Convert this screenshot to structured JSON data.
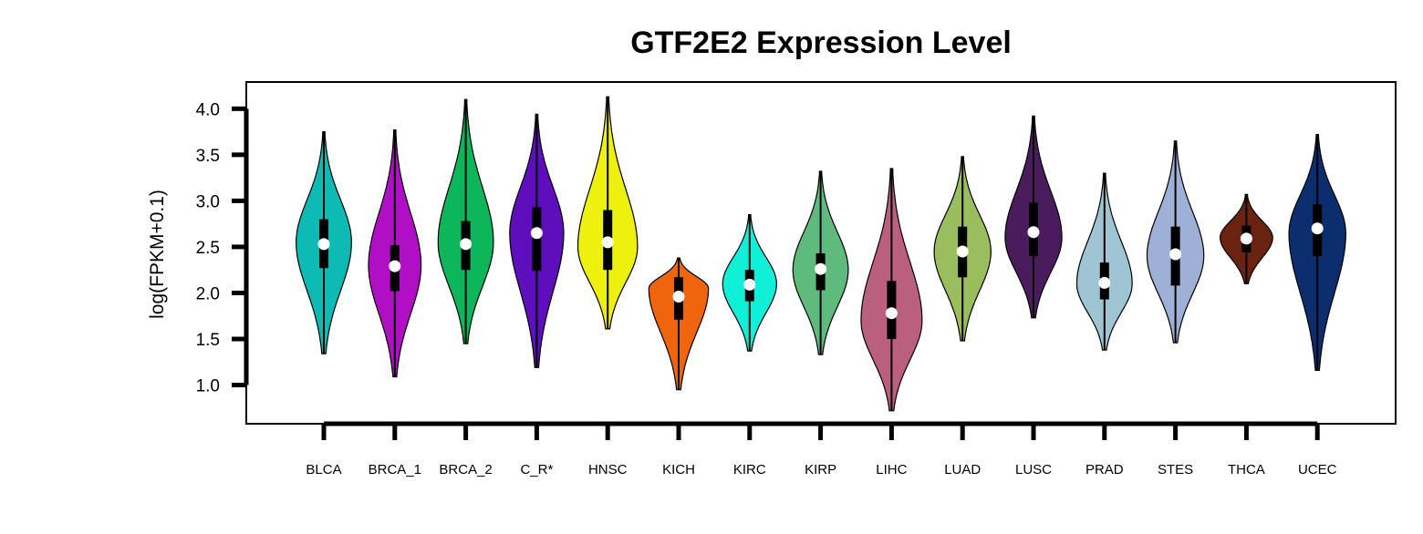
{
  "chart_data": {
    "type": "violin",
    "title": "GTF2E2 Expression Level",
    "xlabel": "",
    "ylabel": "log(FPKM+0.1)",
    "ylim": [
      0.58,
      4.29
    ],
    "yticks": [
      1.0,
      1.5,
      2.0,
      2.5,
      3.0,
      3.5,
      4.0
    ],
    "ytick_labels": [
      "1.0",
      "1.5",
      "2.0",
      "2.5",
      "3.0",
      "3.5",
      "4.0"
    ],
    "grid": false,
    "legend": "none",
    "categories": [
      "BLCA",
      "BRCA_1",
      "BRCA_2",
      "C_R*",
      "HNSC",
      "KICH",
      "KIRC",
      "KIRP",
      "LIHC",
      "LUAD",
      "LUSC",
      "PRAD",
      "STES",
      "THCA",
      "UCEC"
    ],
    "series": [
      {
        "category": "BLCA",
        "color": "#0DBAB4",
        "min": 1.34,
        "q1": 2.27,
        "median": 2.53,
        "q3": 2.8,
        "max": 3.75,
        "peak": 2.55,
        "width": 0.39
      },
      {
        "category": "BRCA_1",
        "color": "#B10FC6",
        "min": 1.09,
        "q1": 2.02,
        "median": 2.29,
        "q3": 2.52,
        "max": 3.77,
        "peak": 2.3,
        "width": 0.37
      },
      {
        "category": "BRCA_2",
        "color": "#0DB55B",
        "min": 1.45,
        "q1": 2.25,
        "median": 2.53,
        "q3": 2.78,
        "max": 4.1,
        "peak": 2.55,
        "width": 0.39
      },
      {
        "category": "C_R*",
        "color": "#5E0EBD",
        "min": 1.19,
        "q1": 2.24,
        "median": 2.65,
        "q3": 2.93,
        "max": 3.94,
        "peak": 2.65,
        "width": 0.38
      },
      {
        "category": "HNSC",
        "color": "#EEF00E",
        "min": 1.61,
        "q1": 2.25,
        "median": 2.55,
        "q3": 2.9,
        "max": 4.13,
        "peak": 2.5,
        "width": 0.42
      },
      {
        "category": "KICH",
        "color": "#F0640E",
        "min": 0.95,
        "q1": 1.71,
        "median": 1.96,
        "q3": 2.17,
        "max": 2.38,
        "peak": 2.05,
        "width": 0.42
      },
      {
        "category": "KIRC",
        "color": "#10F0D8",
        "min": 1.37,
        "q1": 1.91,
        "median": 2.09,
        "q3": 2.25,
        "max": 2.85,
        "peak": 2.1,
        "width": 0.38
      },
      {
        "category": "KIRP",
        "color": "#5FBA7D",
        "min": 1.33,
        "q1": 2.03,
        "median": 2.26,
        "q3": 2.43,
        "max": 3.32,
        "peak": 2.25,
        "width": 0.39
      },
      {
        "category": "LIHC",
        "color": "#BA5F7D",
        "min": 0.72,
        "q1": 1.5,
        "median": 1.78,
        "q3": 2.13,
        "max": 3.35,
        "peak": 1.7,
        "width": 0.43
      },
      {
        "category": "LUAD",
        "color": "#9ABD5E",
        "min": 1.48,
        "q1": 2.17,
        "median": 2.45,
        "q3": 2.72,
        "max": 3.48,
        "peak": 2.45,
        "width": 0.4
      },
      {
        "category": "LUSC",
        "color": "#4A1C5E",
        "min": 1.73,
        "q1": 2.4,
        "median": 2.66,
        "q3": 2.98,
        "max": 3.92,
        "peak": 2.6,
        "width": 0.4
      },
      {
        "category": "PRAD",
        "color": "#9FC5D4",
        "min": 1.38,
        "q1": 1.93,
        "median": 2.11,
        "q3": 2.33,
        "max": 3.3,
        "peak": 2.1,
        "width": 0.39
      },
      {
        "category": "STES",
        "color": "#9FB0D7",
        "min": 1.46,
        "q1": 2.08,
        "median": 2.42,
        "q3": 2.72,
        "max": 3.65,
        "peak": 2.4,
        "width": 0.4
      },
      {
        "category": "THCA",
        "color": "#6A2310",
        "min": 2.1,
        "q1": 2.44,
        "median": 2.59,
        "q3": 2.73,
        "max": 3.07,
        "peak": 2.6,
        "width": 0.37
      },
      {
        "category": "UCEC",
        "color": "#0D2E6E",
        "min": 1.16,
        "q1": 2.4,
        "median": 2.7,
        "q3": 2.96,
        "max": 3.72,
        "peak": 2.65,
        "width": 0.4
      }
    ]
  }
}
